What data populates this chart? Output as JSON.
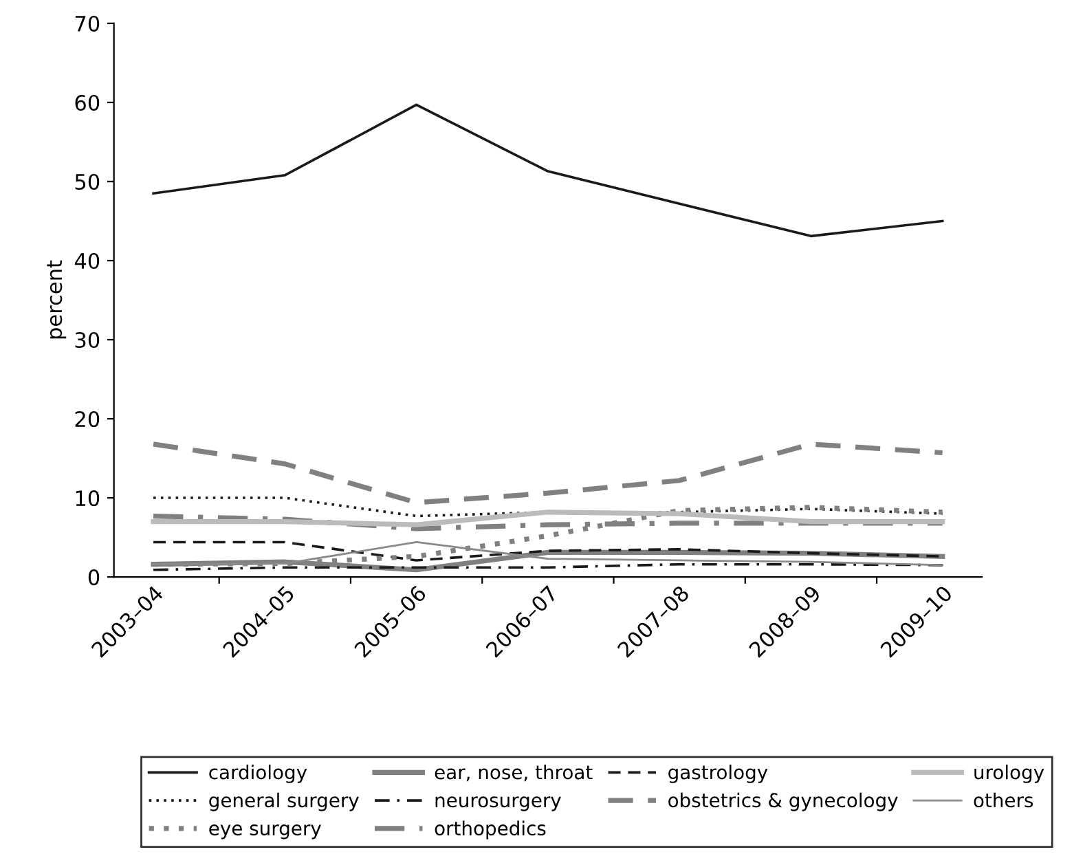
{
  "chart_data": {
    "type": "line",
    "ylabel": "percent",
    "categories": [
      "2003–04",
      "2004–05",
      "2005–06",
      "2006–07",
      "2007–08",
      "2008–09",
      "2009–10"
    ],
    "ylim": [
      0,
      70
    ],
    "yticks": [
      0,
      10,
      20,
      30,
      40,
      50,
      60,
      70
    ],
    "grid": false,
    "legend": "bottom",
    "series": [
      {
        "name": "cardiology",
        "color": "#1a1a1a",
        "line_style": "solid",
        "values": [
          48.5,
          50.8,
          59.7,
          51.3,
          47.2,
          43.1,
          45.0
        ]
      },
      {
        "name": "ear, nose, throat",
        "color": "#808080",
        "line_style": "solid",
        "values": [
          1.6,
          1.9,
          0.9,
          3.1,
          3.1,
          3.0,
          2.6
        ]
      },
      {
        "name": "gastrology",
        "color": "#1a1a1a",
        "line_style": "dashed",
        "values": [
          4.4,
          4.4,
          2.1,
          3.3,
          3.5,
          3.0,
          2.6
        ]
      },
      {
        "name": "general surgery",
        "color": "#1a1a1a",
        "line_style": "dotted",
        "values": [
          10.0,
          10.0,
          7.7,
          8.2,
          8.2,
          8.6,
          8.0
        ]
      },
      {
        "name": "neurosurgery",
        "color": "#1a1a1a",
        "line_style": "dashdot",
        "values": [
          0.9,
          1.2,
          1.2,
          1.2,
          1.6,
          1.6,
          1.5
        ]
      },
      {
        "name": "obstetrics & gynecology",
        "color": "#808080",
        "line_style": "dashed",
        "values": [
          16.8,
          14.3,
          9.4,
          10.6,
          12.2,
          16.8,
          15.7
        ]
      },
      {
        "name": "eye surgery",
        "color": "#808080",
        "line_style": "dotted",
        "values": [
          1.6,
          1.7,
          2.6,
          5.2,
          8.4,
          8.8,
          8.2
        ]
      },
      {
        "name": "orthopedics",
        "color": "#808080",
        "line_style": "dashdot",
        "values": [
          7.7,
          7.3,
          6.1,
          6.6,
          6.8,
          6.8,
          6.8
        ]
      },
      {
        "name": "urology",
        "color": "#bbbbbb",
        "line_style": "solid",
        "values": [
          7.0,
          7.0,
          6.6,
          8.2,
          8.0,
          7.0,
          7.0
        ]
      },
      {
        "name": "others",
        "color": "#8a8a8a",
        "line_style": "solid",
        "values": [
          1.6,
          1.7,
          4.4,
          2.3,
          2.1,
          1.9,
          1.5
        ]
      }
    ]
  }
}
